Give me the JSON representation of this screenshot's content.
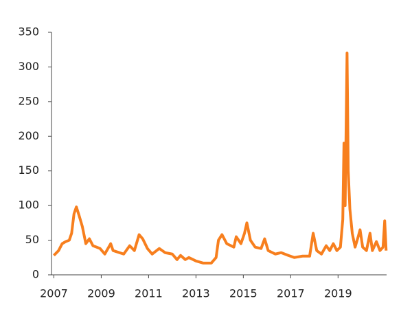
{
  "chart_data": {
    "type": "line",
    "x": [
      2007.0,
      2007.2,
      2007.35,
      2007.5,
      2007.65,
      2007.75,
      2007.85,
      2007.95,
      2008.07,
      2008.2,
      2008.35,
      2008.5,
      2008.65,
      2008.95,
      2009.15,
      2009.4,
      2009.5,
      2009.95,
      2010.2,
      2010.4,
      2010.6,
      2010.75,
      2010.95,
      2011.15,
      2011.45,
      2011.7,
      2012.0,
      2012.2,
      2012.35,
      2012.55,
      2012.7,
      2013.0,
      2013.3,
      2013.65,
      2013.85,
      2013.95,
      2014.1,
      2014.3,
      2014.6,
      2014.7,
      2014.9,
      2015.05,
      2015.15,
      2015.3,
      2015.5,
      2015.75,
      2015.9,
      2016.05,
      2016.35,
      2016.6,
      2016.9,
      2017.15,
      2017.5,
      2017.8,
      2017.95,
      2018.1,
      2018.3,
      2018.5,
      2018.65,
      2018.8,
      2018.95,
      2019.1,
      2019.2,
      2019.25,
      2019.3,
      2019.38,
      2019.43,
      2019.5,
      2019.6,
      2019.72,
      2019.85,
      2019.93,
      2020.04,
      2020.2,
      2020.35,
      2020.45,
      2020.62,
      2020.77,
      2020.9,
      2020.97,
      2021.03
    ],
    "series": [
      {
        "color": "#f77f1e",
        "values": [
          28,
          35,
          45,
          48,
          50,
          60,
          88,
          98,
          85,
          70,
          45,
          52,
          42,
          38,
          30,
          45,
          35,
          30,
          42,
          35,
          58,
          52,
          38,
          30,
          38,
          32,
          30,
          22,
          28,
          22,
          25,
          20,
          17,
          17,
          25,
          50,
          58,
          45,
          40,
          55,
          45,
          60,
          75,
          50,
          40,
          38,
          52,
          35,
          30,
          32,
          28,
          25,
          27,
          27,
          60,
          35,
          30,
          42,
          35,
          45,
          35,
          40,
          80,
          190,
          100,
          320,
          150,
          95,
          60,
          40,
          55,
          65,
          40,
          35,
          60,
          35,
          48,
          35,
          40,
          78,
          35
        ]
      }
    ],
    "xlim": [
      2006.9,
      2021.05
    ],
    "xticks": [
      2007,
      2009,
      2011,
      2013,
      2015,
      2017,
      2019
    ],
    "ylim": [
      0,
      350
    ],
    "yticks": [
      0,
      50,
      100,
      150,
      200,
      250,
      300,
      350
    ],
    "grid": false
  }
}
